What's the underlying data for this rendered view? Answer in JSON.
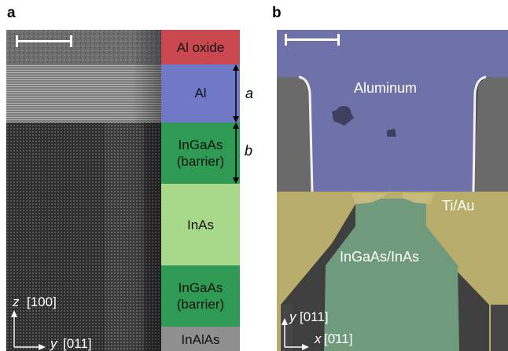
{
  "panel_a": {
    "letter": "a",
    "layers": [
      {
        "label": "Al oxide"
      },
      {
        "label": "Al"
      },
      {
        "label": "InGaAs\n(barrier)"
      },
      {
        "label": "InAs"
      },
      {
        "label": "InGaAs\n(barrier)"
      },
      {
        "label": "InAlAs"
      }
    ],
    "annotations": {
      "a": "a",
      "b": "b"
    },
    "axes": {
      "z_label": "z",
      "z_dir": "[100]",
      "y_label": "y",
      "y_dir": "[011]"
    },
    "colors": {
      "al_oxide": "#c9474f",
      "al": "#6f79c8",
      "ingaas": "#2e9a53",
      "inas": "#a8d98a",
      "inalas": "#8f8f8f"
    }
  },
  "panel_b": {
    "letter": "b",
    "region_labels": {
      "aluminum": "Aluminum",
      "tiau": "Ti/Au",
      "ingaas_inas": "InGaAs/InAs"
    },
    "axes": {
      "y_label": "y",
      "y_dir": "[011]",
      "x_label": "x",
      "x_dir": "[0̄11]"
    },
    "colors": {
      "aluminum": "#6e72a8",
      "tiau": "#b8ad6a",
      "ingaas_inas": "#6f9a7c"
    }
  }
}
